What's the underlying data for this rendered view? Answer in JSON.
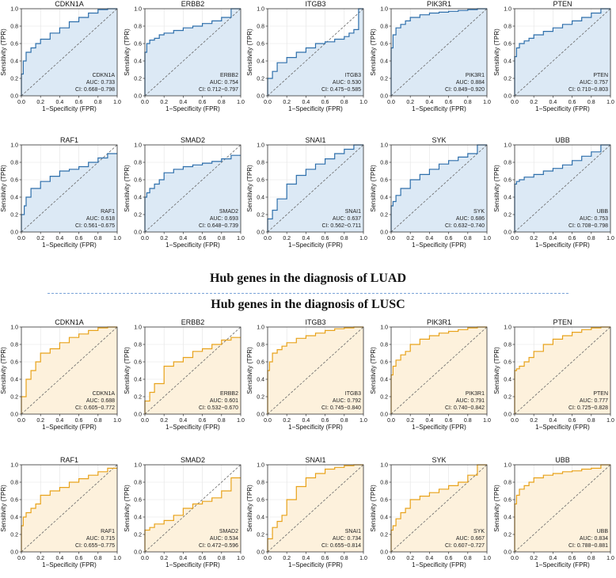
{
  "sections": [
    {
      "title": "Hub genes in the diagnosis of LUAD",
      "line": "#2e6fab",
      "fill": "#dce9f5"
    },
    {
      "title": "Hub genes in the diagnosis of LUSC",
      "line": "#e8a21a",
      "fill": "#fdf1dc"
    }
  ],
  "axis": {
    "xlabel": "1−Specificity (FPR)",
    "ylabel": "Sensitivity (TPR)",
    "ticks": [
      "0.0",
      "0.2",
      "0.4",
      "0.6",
      "0.8",
      "1.0"
    ],
    "auc_prefix": "AUC: ",
    "ci_prefix": "CI: "
  },
  "chart_data": [
    {
      "type": "line",
      "section": 0,
      "title": "CDKN1A",
      "auc": "0.733",
      "ci": "0.668−0.798",
      "xlim": [
        0,
        1
      ],
      "ylim": [
        0,
        1
      ],
      "grid": true,
      "x": [
        0,
        0,
        0.02,
        0.05,
        0.1,
        0.15,
        0.2,
        0.3,
        0.4,
        0.5,
        0.6,
        0.7,
        0.8,
        0.9,
        1
      ],
      "y": [
        0,
        0.15,
        0.25,
        0.4,
        0.5,
        0.55,
        0.6,
        0.65,
        0.72,
        0.78,
        0.85,
        0.9,
        0.95,
        0.99,
        1
      ]
    },
    {
      "type": "line",
      "section": 0,
      "title": "ERBB2",
      "auc": "0.754",
      "ci": "0.712−0.797",
      "xlim": [
        0,
        1
      ],
      "ylim": [
        0,
        1
      ],
      "grid": true,
      "x": [
        0,
        0,
        0.02,
        0.05,
        0.1,
        0.15,
        0.2,
        0.3,
        0.4,
        0.5,
        0.6,
        0.7,
        0.8,
        0.9,
        1
      ],
      "y": [
        0,
        0.35,
        0.5,
        0.6,
        0.64,
        0.66,
        0.7,
        0.72,
        0.75,
        0.78,
        0.8,
        0.83,
        0.86,
        0.9,
        1
      ]
    },
    {
      "type": "line",
      "section": 0,
      "title": "ITGB3",
      "auc": "0.530",
      "ci": "0.475−0.585",
      "xlim": [
        0,
        1
      ],
      "ylim": [
        0,
        1
      ],
      "grid": true,
      "x": [
        0,
        0,
        0.05,
        0.1,
        0.2,
        0.3,
        0.4,
        0.5,
        0.6,
        0.7,
        0.8,
        0.85,
        0.9,
        0.95,
        1
      ],
      "y": [
        0,
        0.1,
        0.2,
        0.28,
        0.38,
        0.44,
        0.5,
        0.55,
        0.6,
        0.62,
        0.65,
        0.68,
        0.72,
        0.76,
        1
      ]
    },
    {
      "type": "line",
      "section": 0,
      "title": "PIK3R1",
      "auc": "0.884",
      "ci": "0.849−0.920",
      "xlim": [
        0,
        1
      ],
      "ylim": [
        0,
        1
      ],
      "grid": true,
      "x": [
        0,
        0,
        0.02,
        0.05,
        0.1,
        0.15,
        0.2,
        0.3,
        0.4,
        0.5,
        0.6,
        0.7,
        0.8,
        0.9,
        1
      ],
      "y": [
        0,
        0.4,
        0.55,
        0.7,
        0.78,
        0.82,
        0.86,
        0.9,
        0.93,
        0.95,
        0.96,
        0.97,
        0.98,
        0.99,
        1
      ]
    },
    {
      "type": "line",
      "section": 0,
      "title": "PTEN",
      "auc": "0.757",
      "ci": "0.710−0.803",
      "xlim": [
        0,
        1
      ],
      "ylim": [
        0,
        1
      ],
      "grid": true,
      "x": [
        0,
        0,
        0.02,
        0.05,
        0.1,
        0.15,
        0.2,
        0.3,
        0.4,
        0.5,
        0.6,
        0.7,
        0.8,
        0.9,
        1
      ],
      "y": [
        0,
        0.3,
        0.45,
        0.55,
        0.6,
        0.63,
        0.66,
        0.7,
        0.74,
        0.78,
        0.82,
        0.86,
        0.9,
        0.95,
        1
      ]
    },
    {
      "type": "line",
      "section": 0,
      "title": "RAF1",
      "auc": "0.618",
      "ci": "0.561−0.675",
      "xlim": [
        0,
        1
      ],
      "ylim": [
        0,
        1
      ],
      "grid": true,
      "x": [
        0,
        0,
        0.03,
        0.05,
        0.1,
        0.2,
        0.3,
        0.4,
        0.5,
        0.6,
        0.7,
        0.8,
        0.9,
        1
      ],
      "y": [
        0,
        0.1,
        0.2,
        0.3,
        0.4,
        0.5,
        0.58,
        0.64,
        0.7,
        0.72,
        0.75,
        0.8,
        0.85,
        0.9
      ]
    },
    {
      "type": "line",
      "section": 0,
      "title": "SMAD2",
      "auc": "0.693",
      "ci": "0.648−0.739",
      "xlim": [
        0,
        1
      ],
      "ylim": [
        0,
        1
      ],
      "grid": true,
      "x": [
        0,
        0,
        0.02,
        0.05,
        0.1,
        0.15,
        0.2,
        0.3,
        0.4,
        0.5,
        0.6,
        0.7,
        0.8,
        0.9,
        1
      ],
      "y": [
        0,
        0.3,
        0.4,
        0.45,
        0.5,
        0.55,
        0.6,
        0.68,
        0.72,
        0.75,
        0.77,
        0.79,
        0.81,
        0.84,
        0.88
      ]
    },
    {
      "type": "line",
      "section": 0,
      "title": "SNAI1",
      "auc": "0.637",
      "ci": "0.562−0.711",
      "xlim": [
        0,
        1
      ],
      "ylim": [
        0,
        1
      ],
      "grid": true,
      "x": [
        0,
        0,
        0.05,
        0.1,
        0.2,
        0.3,
        0.4,
        0.5,
        0.6,
        0.7,
        0.8,
        0.9,
        1
      ],
      "y": [
        0,
        0.05,
        0.15,
        0.25,
        0.38,
        0.55,
        0.65,
        0.72,
        0.78,
        0.84,
        0.9,
        0.95,
        1
      ]
    },
    {
      "type": "line",
      "section": 0,
      "title": "SYK",
      "auc": "0.686",
      "ci": "0.632−0.740",
      "xlim": [
        0,
        1
      ],
      "ylim": [
        0,
        1
      ],
      "grid": true,
      "x": [
        0,
        0,
        0.02,
        0.05,
        0.1,
        0.2,
        0.3,
        0.4,
        0.5,
        0.6,
        0.7,
        0.8,
        0.9,
        1
      ],
      "y": [
        0,
        0.2,
        0.3,
        0.35,
        0.42,
        0.5,
        0.6,
        0.66,
        0.72,
        0.78,
        0.82,
        0.86,
        0.9,
        1
      ]
    },
    {
      "type": "line",
      "section": 0,
      "title": "UBB",
      "auc": "0.753",
      "ci": "0.708−0.798",
      "xlim": [
        0,
        1
      ],
      "ylim": [
        0,
        1
      ],
      "grid": true,
      "x": [
        0,
        0,
        0.02,
        0.05,
        0.1,
        0.2,
        0.3,
        0.4,
        0.5,
        0.6,
        0.7,
        0.8,
        0.9,
        1
      ],
      "y": [
        0,
        0.45,
        0.55,
        0.58,
        0.6,
        0.63,
        0.66,
        0.7,
        0.73,
        0.77,
        0.82,
        0.87,
        0.92,
        1
      ]
    },
    {
      "type": "line",
      "section": 1,
      "title": "CDKN1A",
      "auc": "0.688",
      "ci": "0.605−0.772",
      "xlim": [
        0,
        1
      ],
      "ylim": [
        0,
        1
      ],
      "grid": true,
      "x": [
        0,
        0,
        0.05,
        0.1,
        0.15,
        0.2,
        0.3,
        0.4,
        0.5,
        0.6,
        0.7,
        0.8,
        0.9,
        1
      ],
      "y": [
        0,
        0.05,
        0.2,
        0.4,
        0.5,
        0.6,
        0.7,
        0.75,
        0.82,
        0.88,
        0.92,
        0.96,
        0.99,
        1
      ]
    },
    {
      "type": "line",
      "section": 1,
      "title": "ERBB2",
      "auc": "0.601",
      "ci": "0.532−0.670",
      "xlim": [
        0,
        1
      ],
      "ylim": [
        0,
        1
      ],
      "grid": true,
      "x": [
        0,
        0,
        0.05,
        0.1,
        0.2,
        0.3,
        0.4,
        0.5,
        0.6,
        0.7,
        0.8,
        0.9,
        1
      ],
      "y": [
        0,
        0.1,
        0.15,
        0.25,
        0.35,
        0.55,
        0.6,
        0.65,
        0.72,
        0.75,
        0.8,
        0.85,
        0.88
      ]
    },
    {
      "type": "line",
      "section": 1,
      "title": "ITGB3",
      "auc": "0.792",
      "ci": "0.745−0.840",
      "xlim": [
        0,
        1
      ],
      "ylim": [
        0,
        1
      ],
      "grid": true,
      "x": [
        0,
        0,
        0.02,
        0.05,
        0.1,
        0.15,
        0.2,
        0.3,
        0.4,
        0.5,
        0.6,
        0.7,
        0.8,
        0.9,
        1
      ],
      "y": [
        0,
        0.35,
        0.5,
        0.6,
        0.7,
        0.74,
        0.78,
        0.82,
        0.87,
        0.9,
        0.93,
        0.96,
        0.98,
        0.99,
        1
      ]
    },
    {
      "type": "line",
      "section": 1,
      "title": "PIK3R1",
      "auc": "0.791",
      "ci": "0.740−0.842",
      "xlim": [
        0,
        1
      ],
      "ylim": [
        0,
        1
      ],
      "grid": true,
      "x": [
        0,
        0,
        0.02,
        0.05,
        0.1,
        0.15,
        0.2,
        0.3,
        0.4,
        0.5,
        0.6,
        0.7,
        0.8,
        0.9,
        1
      ],
      "y": [
        0,
        0.3,
        0.45,
        0.55,
        0.62,
        0.68,
        0.72,
        0.8,
        0.86,
        0.9,
        0.93,
        0.95,
        0.97,
        0.99,
        1
      ]
    },
    {
      "type": "line",
      "section": 1,
      "title": "PTEN",
      "auc": "0.777",
      "ci": "0.725−0.828",
      "xlim": [
        0,
        1
      ],
      "ylim": [
        0,
        1
      ],
      "grid": true,
      "x": [
        0,
        0,
        0.02,
        0.05,
        0.1,
        0.15,
        0.2,
        0.3,
        0.4,
        0.5,
        0.6,
        0.7,
        0.8,
        0.9,
        1
      ],
      "y": [
        0,
        0.45,
        0.5,
        0.52,
        0.55,
        0.6,
        0.65,
        0.72,
        0.8,
        0.86,
        0.9,
        0.94,
        0.97,
        0.99,
        1
      ]
    },
    {
      "type": "line",
      "section": 1,
      "title": "RAF1",
      "auc": "0.715",
      "ci": "0.655−0.775",
      "xlim": [
        0,
        1
      ],
      "ylim": [
        0,
        1
      ],
      "grid": true,
      "x": [
        0,
        0,
        0.02,
        0.05,
        0.1,
        0.15,
        0.2,
        0.3,
        0.4,
        0.5,
        0.6,
        0.7,
        0.8,
        0.9,
        1
      ],
      "y": [
        0,
        0.2,
        0.3,
        0.4,
        0.45,
        0.5,
        0.55,
        0.65,
        0.7,
        0.74,
        0.8,
        0.84,
        0.88,
        0.92,
        0.96
      ]
    },
    {
      "type": "line",
      "section": 1,
      "title": "SMAD2",
      "auc": "0.534",
      "ci": "0.472−0.596",
      "xlim": [
        0,
        1
      ],
      "ylim": [
        0,
        1
      ],
      "grid": true,
      "x": [
        0,
        0,
        0.05,
        0.1,
        0.2,
        0.3,
        0.4,
        0.5,
        0.6,
        0.7,
        0.8,
        0.9,
        1
      ],
      "y": [
        0,
        0.2,
        0.25,
        0.28,
        0.32,
        0.36,
        0.42,
        0.5,
        0.55,
        0.58,
        0.62,
        0.7,
        0.85
      ]
    },
    {
      "type": "line",
      "section": 1,
      "title": "SNAI1",
      "auc": "0.734",
      "ci": "0.655−0.814",
      "xlim": [
        0,
        1
      ],
      "ylim": [
        0,
        1
      ],
      "grid": true,
      "x": [
        0,
        0,
        0.05,
        0.1,
        0.15,
        0.2,
        0.3,
        0.4,
        0.5,
        0.6,
        0.7,
        0.8,
        0.9,
        1
      ],
      "y": [
        0,
        0.05,
        0.15,
        0.28,
        0.35,
        0.42,
        0.6,
        0.75,
        0.85,
        0.9,
        0.95,
        0.97,
        0.99,
        1
      ]
    },
    {
      "type": "line",
      "section": 1,
      "title": "SYK",
      "auc": "0.667",
      "ci": "0.607−0.727",
      "xlim": [
        0,
        1
      ],
      "ylim": [
        0,
        1
      ],
      "grid": true,
      "x": [
        0,
        0,
        0.02,
        0.05,
        0.1,
        0.15,
        0.2,
        0.3,
        0.4,
        0.5,
        0.6,
        0.7,
        0.8,
        0.9,
        1
      ],
      "y": [
        0,
        0.2,
        0.25,
        0.3,
        0.38,
        0.45,
        0.5,
        0.6,
        0.64,
        0.68,
        0.72,
        0.76,
        0.8,
        0.88,
        1
      ]
    },
    {
      "type": "line",
      "section": 1,
      "title": "UBB",
      "auc": "0.834",
      "ci": "0.788−0.881",
      "xlim": [
        0,
        1
      ],
      "ylim": [
        0,
        1
      ],
      "grid": true,
      "x": [
        0,
        0,
        0.02,
        0.05,
        0.1,
        0.15,
        0.2,
        0.3,
        0.4,
        0.5,
        0.6,
        0.7,
        0.8,
        0.9,
        1
      ],
      "y": [
        0,
        0.4,
        0.55,
        0.65,
        0.72,
        0.76,
        0.8,
        0.85,
        0.88,
        0.9,
        0.92,
        0.93,
        0.95,
        0.96,
        1
      ]
    }
  ]
}
